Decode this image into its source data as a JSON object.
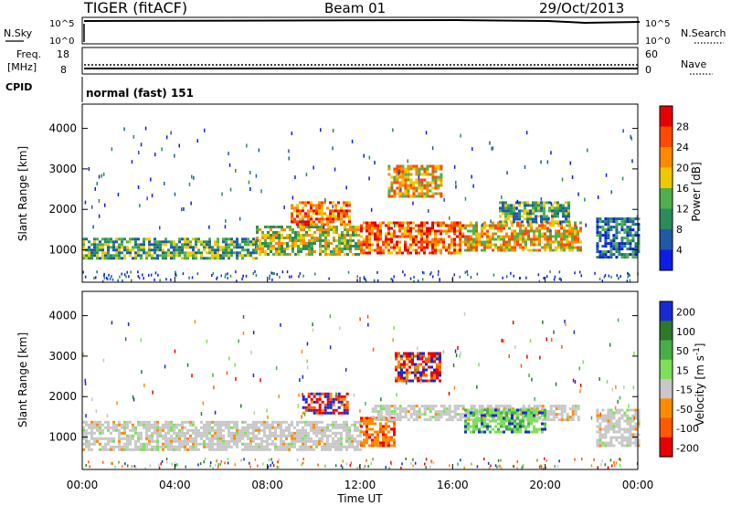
{
  "header": {
    "radar": "TIGER (fitACF)",
    "beam": "Beam 01",
    "date": "29/Oct/2013"
  },
  "strip_nsky": {
    "left_label": "N.Sky",
    "right_label": "N.Search",
    "left_ticks": [
      "10^5",
      "10^0"
    ],
    "right_ticks": [
      "10^5",
      "10^0"
    ]
  },
  "strip_freq": {
    "left_label_1": "Freq.",
    "left_label_2": "[MHz]",
    "left_ticks": [
      "18",
      "8"
    ],
    "right_label": "Nave",
    "right_ticks": [
      "60",
      "0"
    ]
  },
  "strip_cpid": {
    "label": "CPID",
    "value": "normal (fast) 151"
  },
  "x_axis": {
    "title": "Time UT",
    "ticks": [
      "00:00",
      "04:00",
      "08:00",
      "12:00",
      "16:00",
      "20:00",
      "00:00"
    ]
  },
  "chart_data": [
    {
      "type": "heatmap",
      "title": "",
      "xlabel": "Time UT",
      "ylabel": "Slant Range [km]",
      "xlim_hours": [
        0,
        24
      ],
      "ylim": [
        200,
        4600
      ],
      "yticks": [
        1000,
        2000,
        3000,
        4000
      ],
      "colorbar": {
        "label": "Power [dB]",
        "ticks": [
          "4",
          "8",
          "12",
          "16",
          "20",
          "24",
          "28"
        ],
        "colors": [
          "#0a1ee6",
          "#1e5aa8",
          "#2a8c5a",
          "#4fb04a",
          "#f0c800",
          "#ff8a00",
          "#ff4a00",
          "#e60000"
        ]
      },
      "echo_regions": [
        {
          "t_start": 0.0,
          "t_end": 7.5,
          "r_min": 800,
          "r_max": 1300,
          "level": 3
        },
        {
          "t_start": 7.5,
          "t_end": 12.0,
          "r_min": 900,
          "r_max": 1600,
          "level": 4
        },
        {
          "t_start": 9.0,
          "t_end": 11.5,
          "r_min": 1600,
          "r_max": 2200,
          "level": 6
        },
        {
          "t_start": 12.0,
          "t_end": 16.5,
          "r_min": 900,
          "r_max": 1700,
          "level": 6
        },
        {
          "t_start": 13.2,
          "t_end": 15.5,
          "r_min": 2300,
          "r_max": 3100,
          "level": 5
        },
        {
          "t_start": 16.5,
          "t_end": 21.5,
          "r_min": 1000,
          "r_max": 1700,
          "level": 5
        },
        {
          "t_start": 18.0,
          "t_end": 21.0,
          "r_min": 1700,
          "r_max": 2200,
          "level": 3
        },
        {
          "t_start": 22.2,
          "t_end": 24.0,
          "r_min": 800,
          "r_max": 1800,
          "level": 2
        }
      ]
    },
    {
      "type": "heatmap",
      "title": "",
      "xlabel": "Time UT",
      "ylabel": "Slant Range [km]",
      "xlim_hours": [
        0,
        24
      ],
      "ylim": [
        200,
        4600
      ],
      "yticks": [
        1000,
        2000,
        3000,
        4000
      ],
      "colorbar": {
        "label": "Velocity [m s^-1]",
        "ticks": [
          "200",
          "100",
          "50",
          "15",
          "-15",
          "-50",
          "-100",
          "-200"
        ],
        "colors": [
          "#1a2ad2",
          "#2a7a2a",
          "#46b046",
          "#7ee05a",
          "#c8c8c8",
          "#ff8c00",
          "#ff5a00",
          "#e60000"
        ]
      },
      "echo_regions": [
        {
          "t_start": 0.0,
          "t_end": 12.0,
          "r_min": 700,
          "r_max": 1400,
          "class": "-15 to 15"
        },
        {
          "t_start": 9.5,
          "t_end": 11.5,
          "r_min": 1600,
          "r_max": 2100,
          "class": "mixed"
        },
        {
          "t_start": 12.0,
          "t_end": 13.5,
          "r_min": 800,
          "r_max": 1500,
          "class": "-100 to -50"
        },
        {
          "t_start": 12.5,
          "t_end": 21.5,
          "r_min": 1400,
          "r_max": 1800,
          "class": "-15 to 15"
        },
        {
          "t_start": 16.5,
          "t_end": 20.0,
          "r_min": 1100,
          "r_max": 1700,
          "class": "15 to 50"
        },
        {
          "t_start": 13.5,
          "t_end": 15.5,
          "r_min": 2400,
          "r_max": 3100,
          "class": "mixed"
        },
        {
          "t_start": 22.2,
          "t_end": 24.0,
          "r_min": 800,
          "r_max": 1700,
          "class": "-15 to 15"
        }
      ]
    }
  ]
}
